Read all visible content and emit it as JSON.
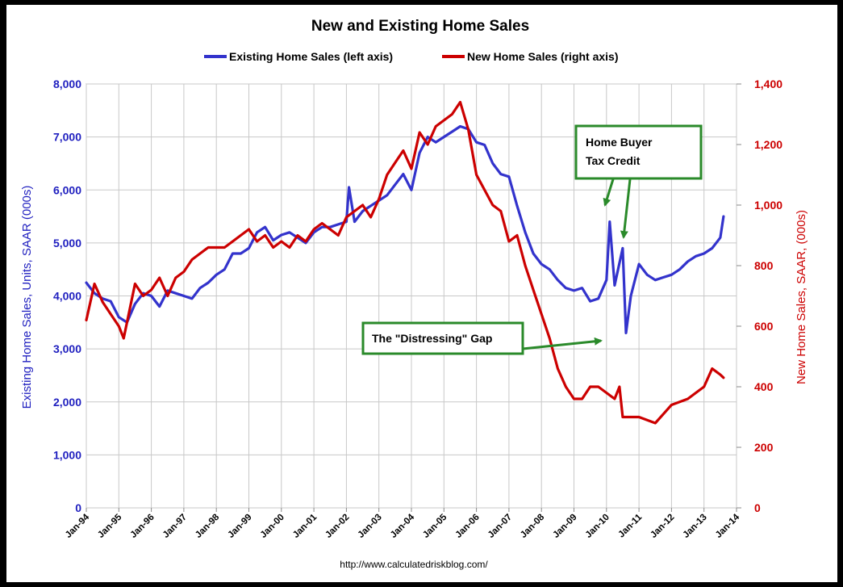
{
  "chart_data": {
    "type": "line",
    "title": "New and Existing Home Sales",
    "source": "http://www.calculatedriskblog.com/",
    "x_ticks": [
      "Jan-94",
      "Jan-95",
      "Jan-96",
      "Jan-97",
      "Jan-98",
      "Jan-99",
      "Jan-00",
      "Jan-01",
      "Jan-02",
      "Jan-03",
      "Jan-04",
      "Jan-05",
      "Jan-06",
      "Jan-07",
      "Jan-08",
      "Jan-09",
      "Jan-10",
      "Jan-11",
      "Jan-12",
      "Jan-13",
      "Jan-14"
    ],
    "y_left": {
      "label": "Existing Home Sales, Units, SAAR (000s)",
      "range": [
        0,
        8000
      ],
      "ticks": [
        "0",
        "1,000",
        "2,000",
        "3,000",
        "4,000",
        "5,000",
        "6,000",
        "7,000",
        "8,000"
      ],
      "color": "#3333cc"
    },
    "y_right": {
      "label": "New Home Sales, SAAR, (000s)",
      "range": [
        0,
        1400
      ],
      "ticks": [
        "0",
        "200",
        "400",
        "600",
        "800",
        "1,000",
        "1,200",
        "1,400"
      ],
      "color": "#cc0000"
    },
    "grid": true,
    "legend_position": "top-center",
    "series": [
      {
        "name": "Existing Home Sales (left axis)",
        "axis": "left",
        "color": "#3333cc",
        "x": [
          1994.0,
          1994.25,
          1994.5,
          1994.75,
          1995.0,
          1995.25,
          1995.5,
          1995.75,
          1996.0,
          1996.25,
          1996.5,
          1996.75,
          1997.0,
          1997.25,
          1997.5,
          1997.75,
          1998.0,
          1998.25,
          1998.5,
          1998.75,
          1999.0,
          1999.25,
          1999.5,
          1999.75,
          2000.0,
          2000.25,
          2000.5,
          2000.75,
          2001.0,
          2001.25,
          2001.5,
          2001.75,
          2002.0,
          2002.08,
          2002.25,
          2002.5,
          2002.75,
          2003.0,
          2003.25,
          2003.5,
          2003.75,
          2004.0,
          2004.25,
          2004.5,
          2004.75,
          2005.0,
          2005.25,
          2005.5,
          2005.75,
          2006.0,
          2006.25,
          2006.5,
          2006.75,
          2007.0,
          2007.25,
          2007.5,
          2007.75,
          2008.0,
          2008.25,
          2008.5,
          2008.75,
          2009.0,
          2009.25,
          2009.5,
          2009.75,
          2010.0,
          2010.1,
          2010.25,
          2010.5,
          2010.6,
          2010.75,
          2011.0,
          2011.25,
          2011.5,
          2011.75,
          2012.0,
          2012.25,
          2012.5,
          2012.75,
          2013.0,
          2013.25,
          2013.5,
          2013.6
        ],
        "values": [
          4250,
          4050,
          3950,
          3900,
          3600,
          3500,
          3850,
          4050,
          4000,
          3800,
          4100,
          4050,
          4000,
          3950,
          4150,
          4250,
          4400,
          4500,
          4800,
          4800,
          4900,
          5200,
          5300,
          5050,
          5150,
          5200,
          5100,
          5000,
          5200,
          5300,
          5300,
          5350,
          5400,
          6050,
          5400,
          5600,
          5700,
          5800,
          5900,
          6100,
          6300,
          6000,
          6700,
          7000,
          6900,
          7000,
          7100,
          7200,
          7150,
          6900,
          6850,
          6500,
          6300,
          6250,
          5700,
          5200,
          4800,
          4600,
          4500,
          4300,
          4150,
          4100,
          4150,
          3900,
          3950,
          4300,
          5400,
          4200,
          4900,
          3300,
          4000,
          4600,
          4400,
          4300,
          4350,
          4400,
          4500,
          4650,
          4750,
          4800,
          4900,
          5100,
          5500
        ]
      },
      {
        "name": "New Home Sales (right axis)",
        "axis": "right",
        "color": "#cc0000",
        "x": [
          1994.0,
          1994.25,
          1994.5,
          1994.75,
          1995.0,
          1995.15,
          1995.5,
          1995.75,
          1996.0,
          1996.25,
          1996.5,
          1996.75,
          1997.0,
          1997.25,
          1997.5,
          1997.75,
          1998.0,
          1998.25,
          1998.5,
          1998.75,
          1999.0,
          1999.25,
          1999.5,
          1999.75,
          2000.0,
          2000.25,
          2000.5,
          2000.75,
          2001.0,
          2001.25,
          2001.5,
          2001.75,
          2002.0,
          2002.25,
          2002.5,
          2002.75,
          2003.0,
          2003.25,
          2003.5,
          2003.75,
          2004.0,
          2004.25,
          2004.5,
          2004.75,
          2005.0,
          2005.25,
          2005.5,
          2005.75,
          2006.0,
          2006.25,
          2006.5,
          2006.75,
          2007.0,
          2007.25,
          2007.5,
          2007.75,
          2008.0,
          2008.25,
          2008.5,
          2008.75,
          2009.0,
          2009.25,
          2009.5,
          2009.75,
          2010.0,
          2010.25,
          2010.4,
          2010.5,
          2010.75,
          2011.0,
          2011.25,
          2011.5,
          2011.75,
          2012.0,
          2012.25,
          2012.5,
          2012.75,
          2013.0,
          2013.25,
          2013.5,
          2013.6
        ],
        "values": [
          620,
          740,
          680,
          640,
          600,
          560,
          740,
          700,
          720,
          760,
          700,
          760,
          780,
          820,
          840,
          860,
          860,
          860,
          880,
          900,
          920,
          880,
          900,
          860,
          880,
          860,
          900,
          880,
          920,
          940,
          920,
          900,
          960,
          980,
          1000,
          960,
          1020,
          1100,
          1140,
          1180,
          1120,
          1240,
          1200,
          1260,
          1280,
          1300,
          1340,
          1250,
          1100,
          1050,
          1000,
          980,
          880,
          900,
          800,
          720,
          640,
          560,
          460,
          400,
          360,
          360,
          400,
          400,
          380,
          360,
          400,
          300,
          300,
          300,
          290,
          280,
          310,
          340,
          350,
          360,
          380,
          400,
          460,
          440,
          430
        ]
      }
    ],
    "annotations": [
      {
        "text": [
          "Home Buyer",
          "Tax Credit"
        ]
      },
      {
        "text": [
          "The \"Distressing\" Gap"
        ]
      }
    ]
  }
}
